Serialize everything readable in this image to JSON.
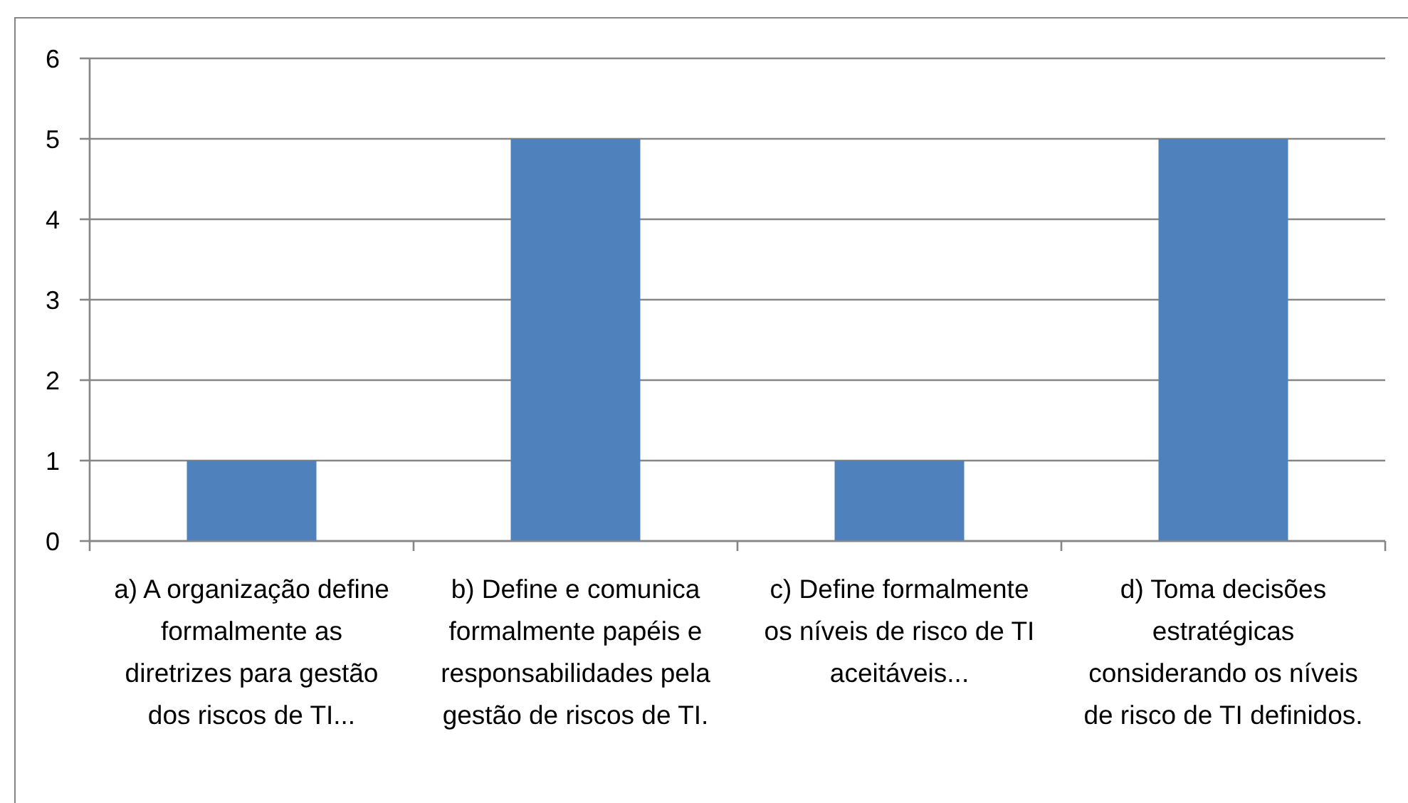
{
  "chart_data": {
    "type": "bar",
    "categories": [
      "a) A organização define formalmente as diretrizes para gestão dos riscos de TI...",
      "b) Define e comunica formalmente papéis e responsabilidades pela gestão de riscos de TI.",
      "c) Define formalmente os níveis de risco de TI aceitáveis...",
      "d) Toma decisões estratégicas considerando os níveis de risco de TI definidos."
    ],
    "values": [
      1,
      5,
      1,
      5
    ],
    "color": "#4f81bd",
    "ylim": [
      0,
      6
    ],
    "yticks": [
      0,
      1,
      2,
      3,
      4,
      5,
      6
    ],
    "grid": "y"
  }
}
